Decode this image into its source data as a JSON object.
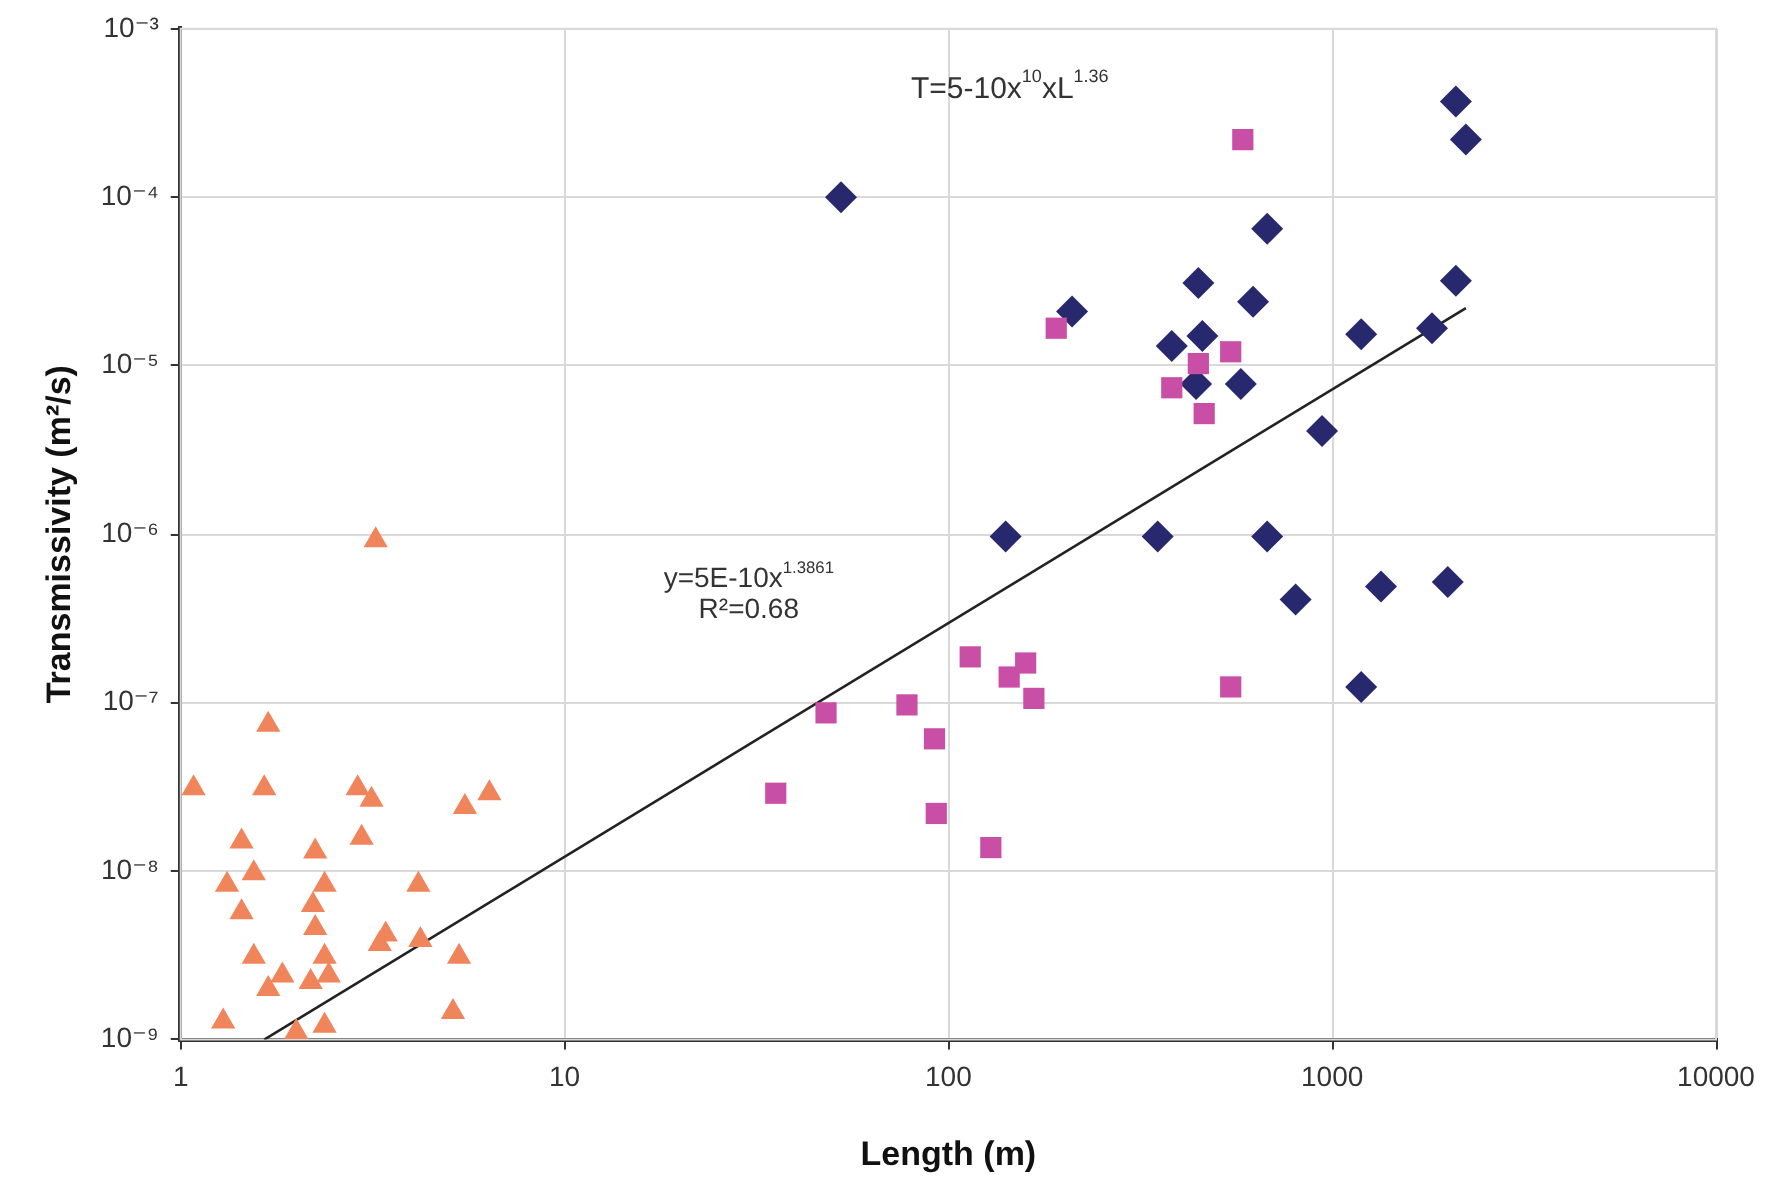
{
  "chart_data": {
    "type": "scatter",
    "xlabel": "Length (m)",
    "ylabel": "Transmissivity (m²/s)",
    "log": "xy",
    "grid": true,
    "legend": false,
    "xlim": [
      1,
      10000
    ],
    "xticks": [
      1,
      10,
      100,
      1000,
      10000
    ],
    "ylim": [
      1e-09,
      0.001
    ],
    "yticks": [
      {
        "value": 1e-09,
        "label": "10⁻⁹"
      },
      {
        "value": 1e-08,
        "label": "10⁻⁸"
      },
      {
        "value": 1e-07,
        "label": "10⁻⁷"
      },
      {
        "value": 1e-06,
        "label": "10⁻⁶"
      },
      {
        "value": 1e-05,
        "label": "10⁻⁵"
      },
      {
        "value": 0.0001,
        "label": "10⁻⁴"
      },
      {
        "value": 0.001,
        "label": "10⁻³"
      }
    ],
    "annotations": [
      "T=5-10x$^{10}$xL$^{1.36}$",
      "y=5E-10x$^{1.3861}$",
      "R²=0.68"
    ],
    "series": [
      {
        "type": "scatter",
        "marker": "triangle",
        "color": "#f0845a",
        "x": [
          1.08,
          1.69,
          1.65,
          1.44,
          2.89,
          3.14,
          2.96,
          5.5,
          6.37,
          2.24,
          1.55,
          1.32,
          2.37,
          4.16,
          1.44,
          2.21,
          2.24,
          3.42,
          3.3,
          4.21,
          1.55,
          2.37,
          5.31,
          1.84,
          1.69,
          2.18,
          2.43,
          5.12,
          1.29,
          2.0,
          2.37,
          3.22
        ],
        "values": [
          3.1e-08,
          7.4e-08,
          3.1e-08,
          1.5e-08,
          3.1e-08,
          2.65e-08,
          1.58e-08,
          2.4e-08,
          2.9e-08,
          1.31e-08,
          9.7e-09,
          8.3e-09,
          8.3e-09,
          8.3e-09,
          5.7e-09,
          6.3e-09,
          4.6e-09,
          4.2e-09,
          3.7e-09,
          3.9e-09,
          3.1e-09,
          3.1e-09,
          3.1e-09,
          2.4e-09,
          2e-09,
          2.2e-09,
          2.4e-09,
          1.46e-09,
          1.28e-09,
          1.11e-09,
          1.21e-09,
          9.2e-07
        ]
      },
      {
        "type": "scatter",
        "marker": "square",
        "color": "#c94fa6",
        "x": [
          585,
          191,
          544,
          448,
          382,
          464,
          114,
          159,
          144,
          167,
          78,
          92,
          93,
          129,
          544,
          48,
          35.5
        ],
        "values": [
          0.00022,
          1.67e-05,
          1.21e-05,
          1.03e-05,
          7.4e-06,
          5.2e-06,
          1.87e-07,
          1.72e-07,
          1.42e-07,
          1.06e-07,
          9.7e-08,
          6.1e-08,
          2.2e-08,
          1.38e-08,
          1.24e-07,
          8.7e-08,
          2.9e-08
        ]
      },
      {
        "type": "scatter",
        "marker": "diamond",
        "color": "#28286e",
        "x": [
          52.5,
          2100,
          2230,
          677,
          2100,
          448,
          622,
          210,
          1190,
          1820,
          382,
          459,
          578,
          442,
          941,
          141,
          351,
          677,
          803,
          1340,
          2000,
          1190
        ],
        "values": [
          0.0001,
          0.00037,
          0.00022,
          6.5e-05,
          3.2e-05,
          3.1e-05,
          2.4e-05,
          2.1e-05,
          1.54e-05,
          1.67e-05,
          1.31e-05,
          1.5e-05,
          7.8e-06,
          7.8e-06,
          4.1e-06,
          9.7e-07,
          9.7e-07,
          9.7e-07,
          4.1e-07,
          4.9e-07,
          5.2e-07,
          1.24e-07
        ]
      },
      {
        "type": "line",
        "marker": "none",
        "line_style": "solid",
        "color": "#222222",
        "x": [
          1.65,
          2230
        ],
        "values": [
          1e-09,
          2.2e-05
        ]
      }
    ]
  }
}
